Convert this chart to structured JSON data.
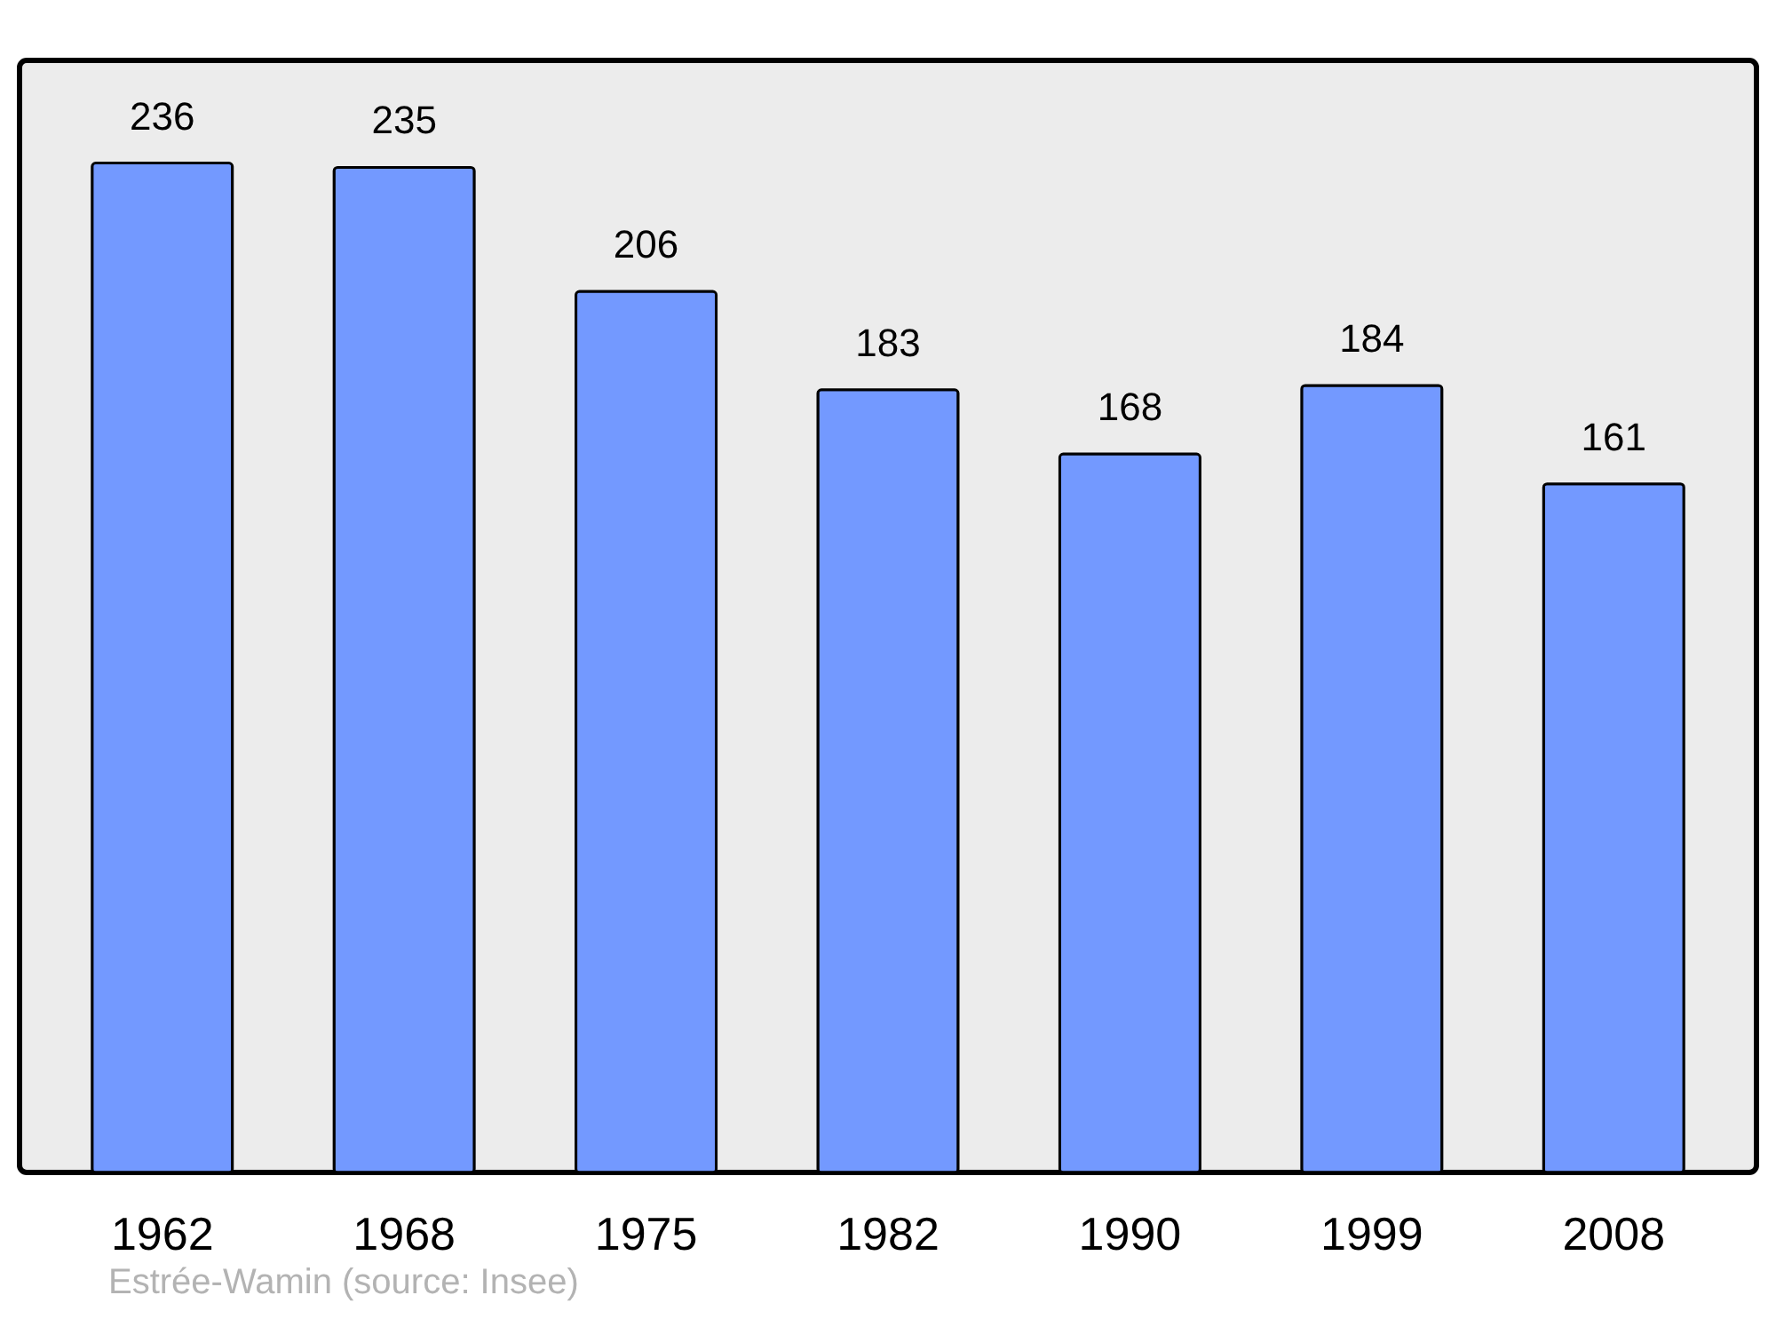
{
  "chart_data": {
    "type": "bar",
    "categories": [
      "1962",
      "1968",
      "1975",
      "1982",
      "1990",
      "1999",
      "2008"
    ],
    "values": [
      236,
      235,
      206,
      183,
      168,
      184,
      161
    ],
    "color": "#7399ff",
    "ylim": [
      0,
      260
    ],
    "data_labels": true,
    "grid": false,
    "tick_labels": "x",
    "annotations": [
      "Estrée-Wamin    (source: Insee)"
    ]
  }
}
